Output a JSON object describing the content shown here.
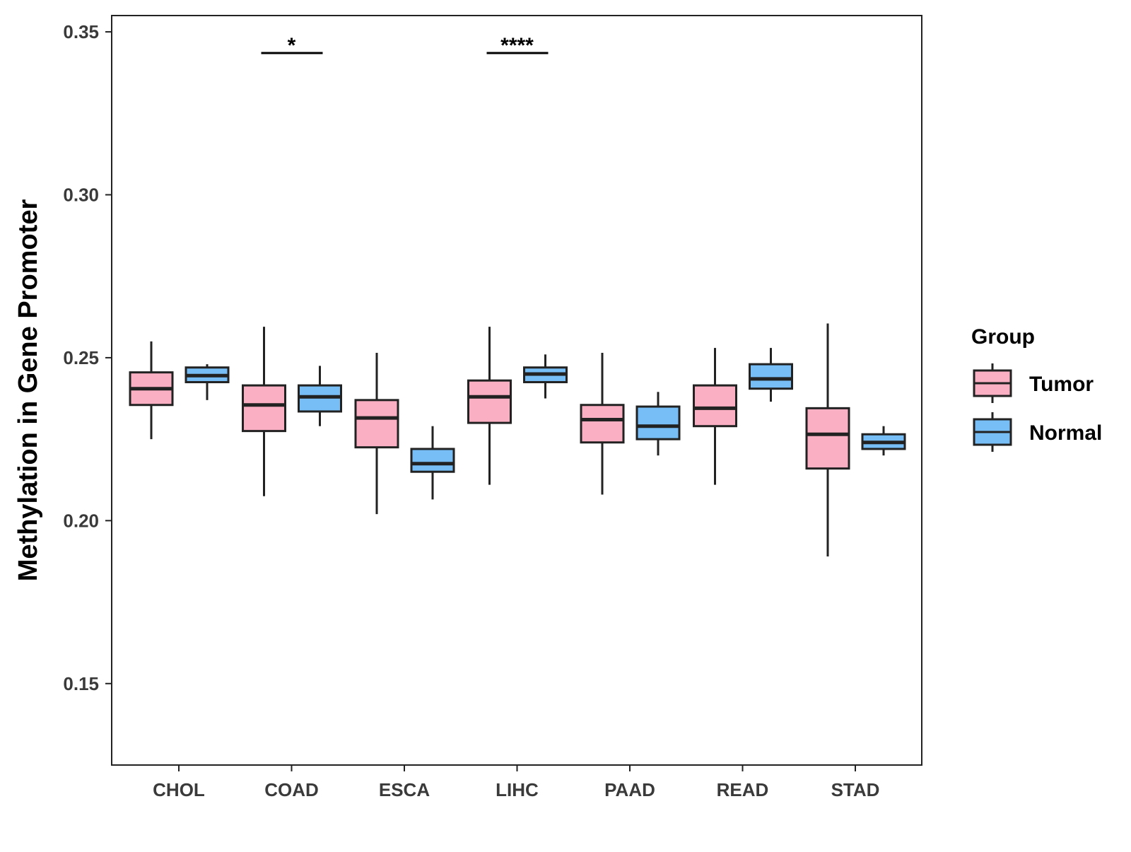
{
  "chart_data": {
    "type": "boxplot",
    "title": "",
    "xlabel": "",
    "ylabel": "Methylation in Gene Promoter",
    "ylim": [
      0.125,
      0.355
    ],
    "yticks": [
      0.15,
      0.2,
      0.25,
      0.3,
      0.35
    ],
    "ytick_labels": [
      "0.15",
      "0.20",
      "0.25",
      "0.30",
      "0.35"
    ],
    "categories": [
      "CHOL",
      "COAD",
      "ESCA",
      "LIHC",
      "PAAD",
      "READ",
      "STAD"
    ],
    "legend": {
      "title": "Group",
      "position": "right",
      "entries": [
        {
          "name": "Tumor",
          "color": "#fbafc2"
        },
        {
          "name": "Normal",
          "color": "#76bef5"
        }
      ]
    },
    "series": [
      {
        "name": "Tumor",
        "color": "#fbafc2",
        "boxes": [
          {
            "category": "CHOL",
            "min": 0.225,
            "q1": 0.2355,
            "median": 0.2405,
            "q3": 0.2455,
            "max": 0.255
          },
          {
            "category": "COAD",
            "min": 0.2075,
            "q1": 0.2275,
            "median": 0.2355,
            "q3": 0.2415,
            "max": 0.2595
          },
          {
            "category": "ESCA",
            "min": 0.202,
            "q1": 0.2225,
            "median": 0.2315,
            "q3": 0.237,
            "max": 0.2515
          },
          {
            "category": "LIHC",
            "min": 0.211,
            "q1": 0.23,
            "median": 0.238,
            "q3": 0.243,
            "max": 0.2595
          },
          {
            "category": "PAAD",
            "min": 0.208,
            "q1": 0.224,
            "median": 0.231,
            "q3": 0.2355,
            "max": 0.2515
          },
          {
            "category": "READ",
            "min": 0.211,
            "q1": 0.229,
            "median": 0.2345,
            "q3": 0.2415,
            "max": 0.253
          },
          {
            "category": "STAD",
            "min": 0.189,
            "q1": 0.216,
            "median": 0.2265,
            "q3": 0.2345,
            "max": 0.2605
          }
        ]
      },
      {
        "name": "Normal",
        "color": "#76bef5",
        "boxes": [
          {
            "category": "CHOL",
            "min": 0.237,
            "q1": 0.2425,
            "median": 0.2445,
            "q3": 0.247,
            "max": 0.248
          },
          {
            "category": "COAD",
            "min": 0.229,
            "q1": 0.2335,
            "median": 0.238,
            "q3": 0.2415,
            "max": 0.2475
          },
          {
            "category": "ESCA",
            "min": 0.2065,
            "q1": 0.215,
            "median": 0.2175,
            "q3": 0.222,
            "max": 0.229
          },
          {
            "category": "LIHC",
            "min": 0.2375,
            "q1": 0.2425,
            "median": 0.245,
            "q3": 0.247,
            "max": 0.251
          },
          {
            "category": "PAAD",
            "min": 0.22,
            "q1": 0.225,
            "median": 0.229,
            "q3": 0.235,
            "max": 0.2395
          },
          {
            "category": "READ",
            "min": 0.2365,
            "q1": 0.2405,
            "median": 0.2435,
            "q3": 0.248,
            "max": 0.253
          },
          {
            "category": "STAD",
            "min": 0.22,
            "q1": 0.222,
            "median": 0.224,
            "q3": 0.2265,
            "max": 0.229
          }
        ]
      }
    ],
    "annotations": [
      {
        "category": "COAD",
        "label": "*",
        "y": 0.3435
      },
      {
        "category": "LIHC",
        "label": "****",
        "y": 0.3435
      }
    ]
  }
}
